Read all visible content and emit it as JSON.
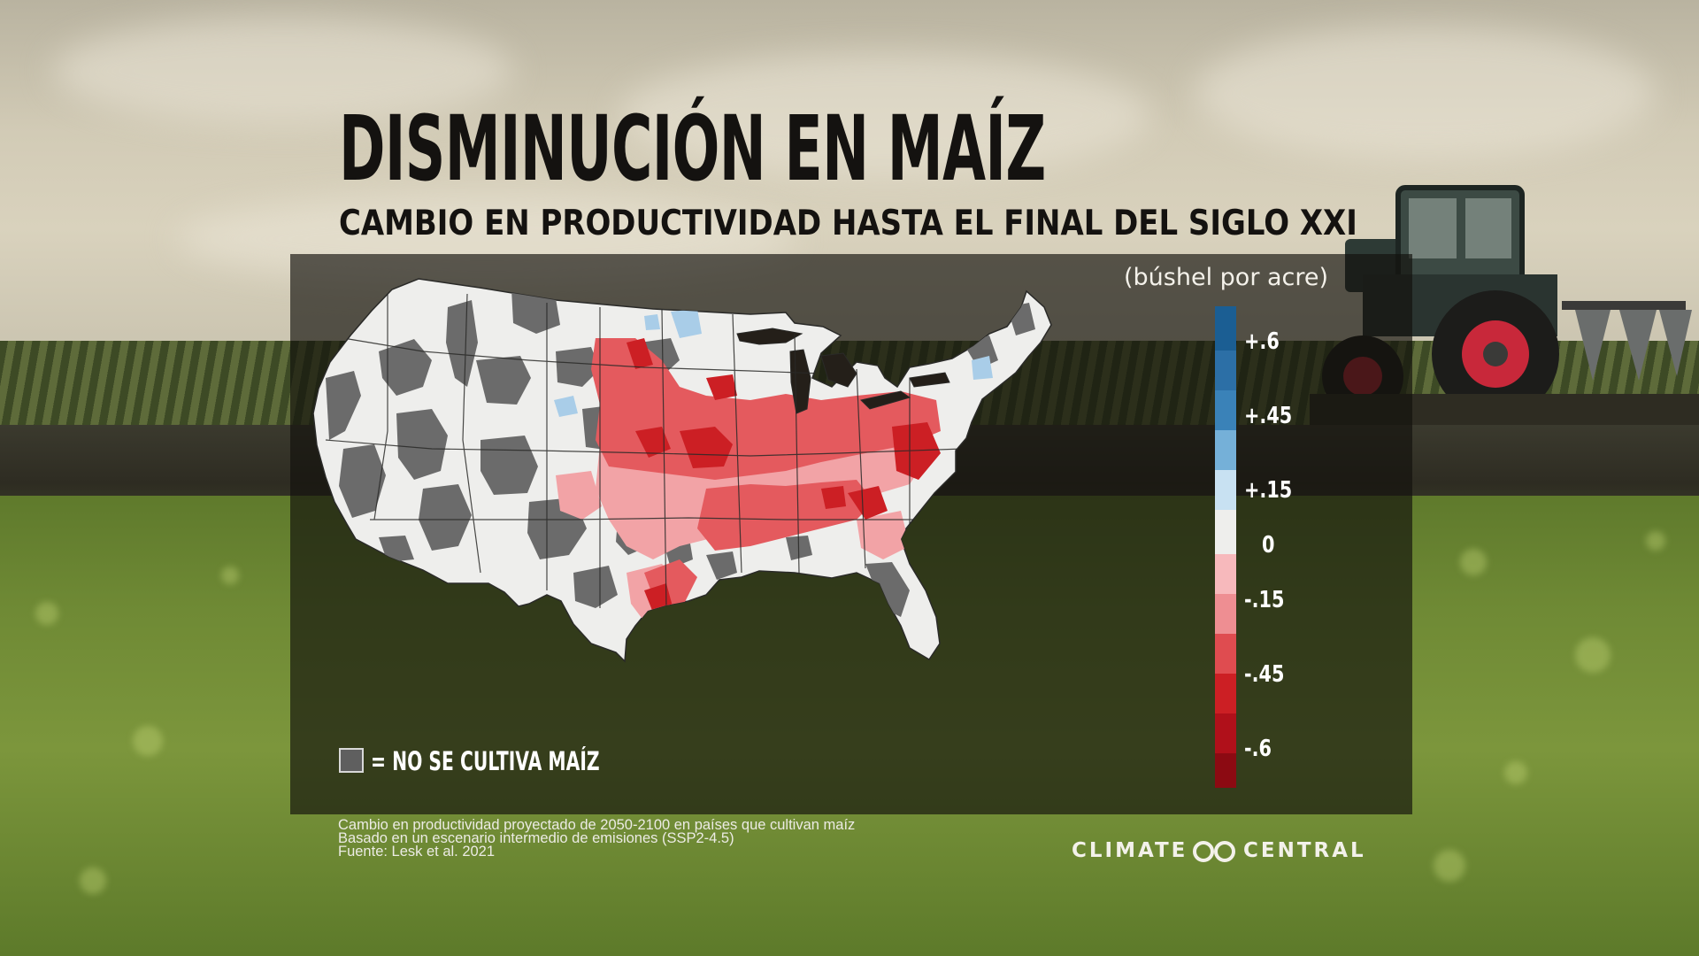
{
  "title": "DISMINUCIÓN EN MAÍZ",
  "subtitle": "CAMBIO EN PRODUCTIVIDAD HASTA EL FINAL DEL SIGLO XXI",
  "legend": {
    "unit": "(búshel por acre)",
    "ticks": [
      "+.6",
      "+.45",
      "+.15",
      "0",
      "-.15",
      "-.45",
      "-.6"
    ],
    "colors": [
      "#1b5e93",
      "#3a82b8",
      "#75b0d8",
      "#c8e1f2",
      "#eeeeec",
      "#f7b9bc",
      "#ee8e92",
      "#df4c50",
      "#cc1f24",
      "#b0101a",
      "#8c0a12"
    ]
  },
  "no_grow": {
    "label": "= NO SE CULTIVA MAÍZ",
    "color": "#5f5f5f"
  },
  "notes": [
    "Cambio en productividad proyectado de 2050-2100 en países que cultivan maíz",
    "Basado en un escenario intermedio de emisiones (SSP2-4.5)",
    "Fuente: Lesk et al. 2021"
  ],
  "brand": {
    "left": "CLIMATE",
    "right": "CENTRAL",
    "logo": "infinity-loop-icon"
  },
  "map_colors": {
    "land": "#eeeeec",
    "no_corn": "#6b6b6b",
    "light_red": "#f2a3a6",
    "mid_red": "#e45a5e",
    "dark_red": "#cc1f24",
    "light_blue": "#a9cde8"
  },
  "background": {
    "scene": "farm-field-with-tractor",
    "icon": "tractor-icon"
  }
}
